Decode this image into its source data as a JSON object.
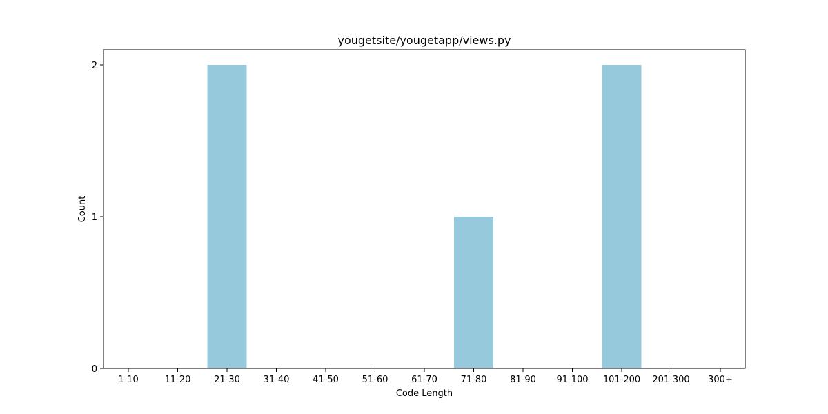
{
  "chart_data": {
    "type": "bar",
    "title": "yougetsite/yougetapp/views.py",
    "xlabel": "Code Length",
    "ylabel": "Count",
    "categories": [
      "1-10",
      "11-20",
      "21-30",
      "31-40",
      "41-50",
      "51-60",
      "61-70",
      "71-80",
      "81-90",
      "91-100",
      "101-200",
      "201-300",
      "300+"
    ],
    "values": [
      0,
      0,
      2,
      0,
      0,
      0,
      0,
      1,
      0,
      0,
      2,
      0,
      0
    ],
    "yticks": [
      "0",
      "1",
      "2"
    ],
    "ylim": [
      0,
      2.1
    ],
    "bar_color": "#96c9dc",
    "grid": false,
    "legend": "none"
  }
}
